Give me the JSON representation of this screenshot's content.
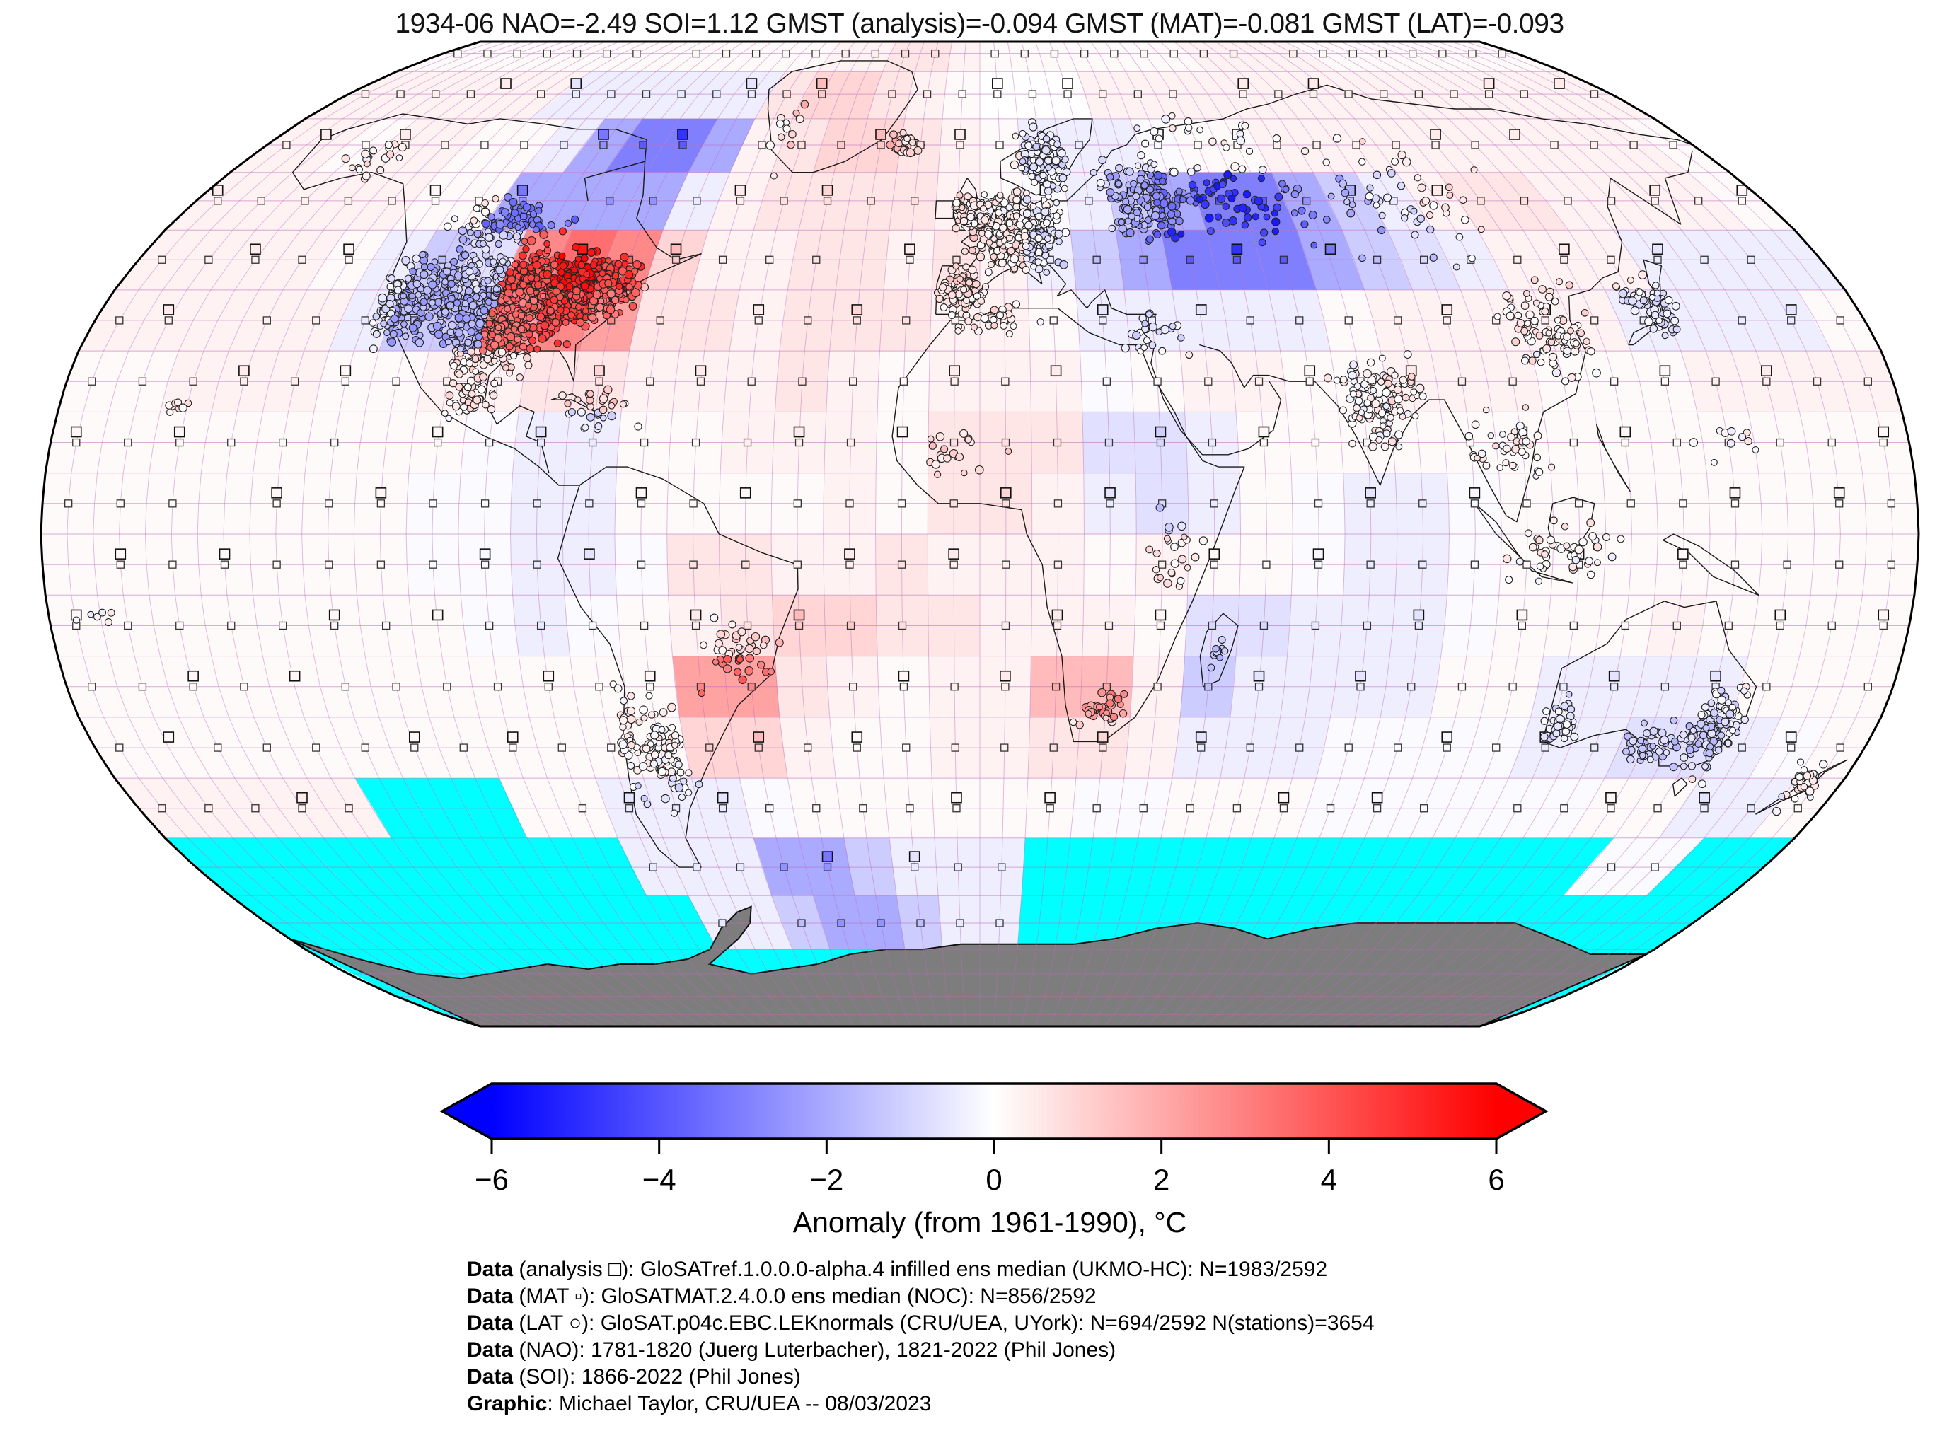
{
  "title": "1934-06 NAO=-2.49 SOI=1.12 GMST (analysis)=-0.094 GMST (MAT)=-0.081 GMST (LAT)=-0.093",
  "header": {
    "date": "1934-06",
    "nao": "-2.49",
    "soi": "1.12",
    "gmst_analysis": "-0.094",
    "gmst_mat": "-0.081",
    "gmst_lat": "-0.093"
  },
  "caption": {
    "lines": [
      {
        "prefix": "Data",
        "rest": " (analysis □): GloSATref.1.0.0.0-alpha.4 infilled ens median (UKMO-HC): N=1983/2592"
      },
      {
        "prefix": "Data",
        "rest": " (MAT ▫): GloSATMAT.2.4.0.0 ens median (NOC): N=856/2592"
      },
      {
        "prefix": "Data",
        "rest": " (LAT ○): GloSAT.p04c.EBC.LEKnormals (CRU/UEA, UYork): N=694/2592 N(stations)=3654"
      },
      {
        "prefix": "Data",
        "rest": " (NAO): 1781-1820 (Juerg Luterbacher), 1821-2022 (Phil Jones)"
      },
      {
        "prefix": "Data",
        "rest": " (SOI): 1866-2022 (Phil Jones)"
      },
      {
        "prefix": "Graphic",
        "rest": ": Michael Taylor, CRU/UEA -- 08/03/2023"
      }
    ]
  },
  "chart_data": {
    "type": "heatmap",
    "projection": "robinson",
    "title": "1934-06 NAO=-2.49 SOI=1.12 GMST (analysis)=-0.094 GMST (MAT)=-0.081 GMST (LAT)=-0.093",
    "colorbar": {
      "label": "Anomaly (from 1961-1990), °C",
      "min": -6,
      "max": 6,
      "ticks": [
        -6,
        -4,
        -2,
        0,
        2,
        4,
        6
      ],
      "tick_labels": [
        "−6",
        "−4",
        "−2",
        "0",
        "2",
        "4",
        "6"
      ],
      "neg_color": "#0000ff",
      "mid_color": "#ffffff",
      "pos_color": "#ff0000"
    },
    "colors": {
      "missing_ocean": "#00ffff",
      "no_data_land": "#7d7d7d",
      "grid_line": "#ba6cba",
      "coast": "#1a1a1a",
      "marker_outline": "#222222",
      "boundary": "#000000"
    },
    "legend_markers": [
      {
        "symbol": "open-square-large",
        "label": "analysis"
      },
      {
        "symbol": "open-square-small",
        "label": "MAT"
      },
      {
        "symbol": "open-circle",
        "label": "LAT station"
      }
    ],
    "grid": {
      "comment": "Approximate anomaly field read from figure; 10-deg cells, rows from 85N to 85S, cols from 180W to 180E",
      "lon_start": -180,
      "lon_step": 10,
      "lat_start": 90,
      "lat_step": -10,
      "value_map": {
        "0": 0,
        "a": 0.12,
        "b": 0.3,
        "c": 0.6,
        "d": 1.0,
        "e": 1.6,
        "f": 2.2,
        "g": 2.8,
        "h": 3.4,
        "A": -0.12,
        "B": -0.4,
        "C": -0.7,
        "D": -1.2,
        "E": -2.0,
        "F": -3.0,
        "G": -3.5,
        "M": "missing",
        "X": "no-data-land"
      },
      "rows": [
        "aaaaaaaaaaaaabbccbaaaaaaabbbbaaaaaaa",
        "bbbbbbBBBBBBcddcba000bbbbbbbbbbbbbbb",
        "bbabbaaBEFFEbcddcbaBBBAaabbbbbbbbbba",
        "bbbbbaaEEEEBbccccbaABDEFFEDBbccbbbba",
        "bbbbaBDCghgdbbccbcbBDEFFFEDCBbbbBBBB",
        "bbbbbBDDfgfccbcccbbaBBBBBabbbbbBBBBa",
        "aabbbaabbccbbbcbabbbAabbaabbbaaabbbb",
        "aaaaaaaaABBaabbbacccCCBaaaaaaaaaaaaa",
        "aaaaaaaAABBaaaabaccbBCBaABBAaaaaaaaa",
        "aaaaaaaAABBAccbbcbbbabaaABBAaaaaaaaa",
        "aaaaaaaaABAabcddccbbbaCCBBBAaaabaaaa",
        "aaaaaaaaaaaaffcbabbeebDBBBBaaBBBBaaa",
        "aaaaaaaaaaaaddbaabbccbBBBAAAABBCCBAa",
        "bbbbbMMMaaBBBAaaaaaaAAaaaAAAAAAaaBBa",
        "MMMMMMMMMMBBBEEDBBBMMMMMMMMMMMMMAAMM",
        "MMMMMMMMMMMBBDEEDBBMMMMMMMMMMMMMMMMM",
        "MMMMMMMMMMMMMMMMMMMMMMMMMMMMMMMMMMMM",
        "MMMMMMMMMMMMMMMMMMMMMMMMMMMMMMMMMMMM"
      ]
    },
    "station_clusters": {
      "comment": "approximate LAT station circle clusters [lon, lat, sx, sy, count]",
      "total_stations": 3654,
      "clusters": [
        [
          -95,
          39,
          14,
          6,
          800
        ],
        [
          -80,
          40,
          7,
          4,
          400
        ],
        [
          -98,
          31,
          8,
          4,
          200
        ],
        [
          -112,
          40,
          6,
          6,
          150
        ],
        [
          -120,
          38,
          3,
          6,
          120
        ],
        [
          -105,
          51,
          12,
          4,
          90
        ],
        [
          -100,
          22,
          5,
          4,
          45
        ],
        [
          -75,
          20,
          7,
          3,
          30
        ],
        [
          8,
          50,
          8,
          5,
          550
        ],
        [
          -2,
          53,
          3,
          3,
          130
        ],
        [
          -4,
          40,
          4,
          3,
          90
        ],
        [
          15,
          62,
          5,
          5,
          130
        ],
        [
          -19,
          65,
          3,
          2,
          40
        ],
        [
          38,
          55,
          10,
          6,
          170
        ],
        [
          60,
          55,
          15,
          6,
          60
        ],
        [
          95,
          55,
          20,
          8,
          60
        ],
        [
          78,
          22,
          7,
          6,
          130
        ],
        [
          115,
          33,
          8,
          7,
          90
        ],
        [
          138,
          37,
          4,
          4,
          80
        ],
        [
          102,
          14,
          7,
          5,
          40
        ],
        [
          112,
          -3,
          10,
          4,
          45
        ],
        [
          148,
          -32,
          4,
          6,
          120
        ],
        [
          138,
          -34,
          7,
          3,
          60
        ],
        [
          117,
          -31,
          3,
          4,
          40
        ],
        [
          172,
          -41,
          3,
          3,
          35
        ],
        [
          -64,
          -36,
          5,
          7,
          90
        ],
        [
          -71,
          -33,
          2,
          8,
          35
        ],
        [
          -47,
          -20,
          6,
          5,
          40
        ],
        [
          25,
          -29,
          5,
          3,
          35
        ],
        [
          3,
          35,
          7,
          2,
          30
        ],
        [
          35,
          33,
          5,
          4,
          25
        ],
        [
          -5,
          13,
          8,
          4,
          20
        ],
        [
          37,
          -2,
          4,
          6,
          25
        ],
        [
          47,
          -19,
          2,
          3,
          10
        ],
        [
          -150,
          62,
          6,
          3,
          20
        ],
        [
          -50,
          67,
          4,
          5,
          12
        ],
        [
          60,
          68,
          18,
          3,
          20
        ],
        [
          -157,
          21,
          2,
          1,
          8
        ],
        [
          145,
          15,
          8,
          4,
          10
        ],
        [
          -170,
          -14,
          5,
          2,
          6
        ]
      ]
    }
  }
}
